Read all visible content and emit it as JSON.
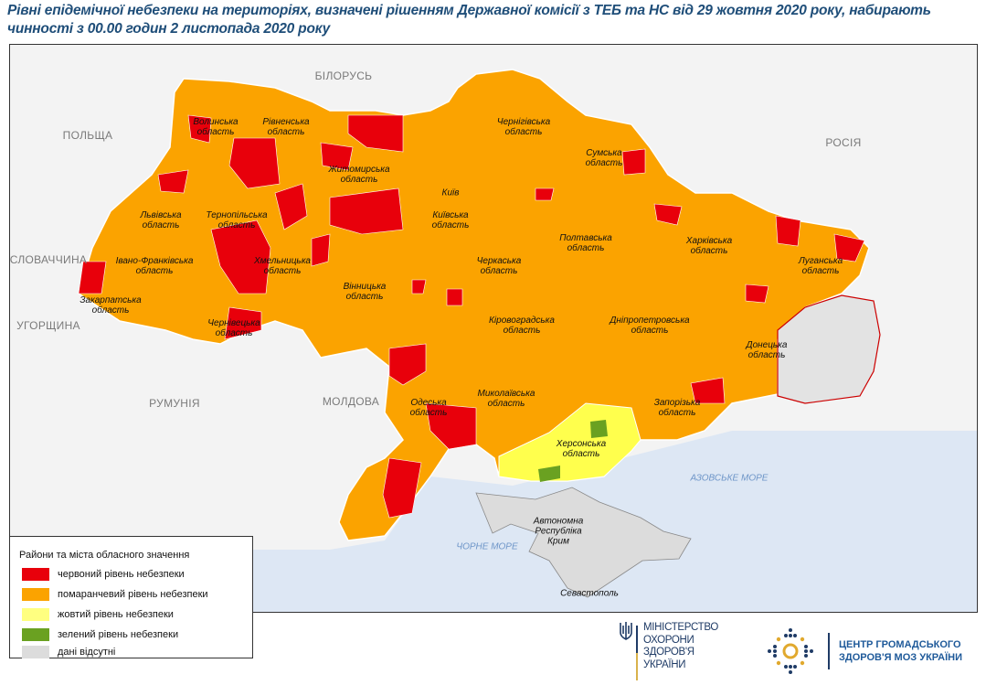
{
  "title": "Рівні епідемічної небезпеки на територіях, визначені рішенням Державної комісії з ТЕБ та НС від 29 жовтня 2020 року, набирають чинності з 00.00 годин 2 листопада 2020 року",
  "colors": {
    "red": "#e8000b",
    "orange": "#fba300",
    "yellow": "#ffff4d",
    "green": "#6aa121",
    "grey": "#dcdcdc",
    "sea": "#dde7f4",
    "neighbors": "#f3f3f3"
  },
  "countries": {
    "belarus": "БІЛОРУСЬ",
    "poland": "ПОЛЬЩА",
    "russia": "РОСІЯ",
    "slovakia": "СЛОВАЧЧИНА",
    "hungary": "УГОРЩИНА",
    "romania": "РУМУНІЯ",
    "moldova": "МОЛДОВА"
  },
  "seas": {
    "azov": "АЗОВСЬКЕ МОРЕ",
    "black": "ЧОРНЕ МОРЕ"
  },
  "regions": {
    "volyn": "Волинська область",
    "rivne": "Рівненська область",
    "zhytomyr": "Житомирська область",
    "chernihiv": "Чернігівська область",
    "sumy": "Сумська область",
    "lviv": "Львівська область",
    "ternopil": "Тернопільська область",
    "khmelnytskyi": "Хмельницька область",
    "kyiv_city": "Київ",
    "kyiv": "Київська область",
    "kharkiv": "Харківська область",
    "luhansk": "Луганська область",
    "ivano_frankivsk": "Івано-Франківська область",
    "zakarpattia": "Закарпатська область",
    "chernivtsi": "Чернівецька область",
    "vinnytsia": "Вінницька область",
    "cherkasy": "Черкаська область",
    "poltava": "Полтавська область",
    "kirovohrad": "Кіровоградська область",
    "dnipro": "Дніпропетровська область",
    "donetsk": "Донецька область",
    "odesa": "Одеська область",
    "mykolaiv": "Миколаївська область",
    "kherson": "Херсонська область",
    "zaporizhzhia": "Запорізька область",
    "crimea": "Автономна Республіка Крим",
    "sevastopol": "Севастополь"
  },
  "legend": {
    "title": "Райони та міста обласного значення",
    "items": [
      {
        "label": "червоний рівень небезпеки",
        "color": "#e8000b"
      },
      {
        "label": "помаранчевий рівень небезпеки",
        "color": "#fba300"
      },
      {
        "label": "жовтий рівень небезпеки",
        "color": "#ffff80"
      },
      {
        "label": "зелений рівень небезпеки",
        "color": "#6aa121"
      },
      {
        "label": "дані відсутні",
        "color": "#dcdcdc"
      }
    ]
  },
  "logos": {
    "moz": [
      "МІНІСТЕРСТВО",
      "ОХОРОНИ",
      "ЗДОРОВ'Я",
      "УКРАЇНИ"
    ],
    "phc": [
      "ЦЕНТР ГРОМАДСЬКОГО",
      "ЗДОРОВ'Я МОЗ УКРАЇНИ"
    ]
  }
}
